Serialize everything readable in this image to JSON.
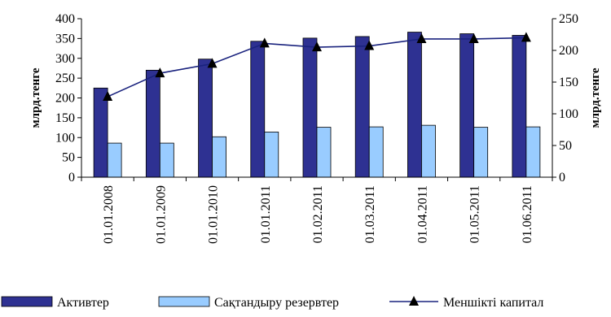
{
  "chart_data": {
    "type": "bar",
    "categories": [
      "01.01.2008",
      "01.01.2009",
      "01.01.2010",
      "01.01.2011",
      "01.02.2011",
      "01.03.2011",
      "01.04.2011",
      "01.05.2011",
      "01.06.2011"
    ],
    "series": [
      {
        "name": "Активтер",
        "type": "bar",
        "axis": "left",
        "color": "#2E3192",
        "values": [
          225,
          270,
          298,
          343,
          351,
          355,
          366,
          362,
          358
        ]
      },
      {
        "name": "Сақтандыру резервтер",
        "type": "bar",
        "axis": "left",
        "color": "#99CCFF",
        "values": [
          86,
          86,
          102,
          114,
          126,
          127,
          131,
          126,
          127
        ]
      },
      {
        "name": "Меншікті капитал",
        "type": "line",
        "axis": "right",
        "color": "#1A237E",
        "marker": "triangle",
        "values": [
          127,
          164,
          179,
          211,
          205,
          207,
          218,
          218,
          220
        ]
      }
    ],
    "y_left": {
      "label": "млрд.тенге",
      "ylim": [
        0,
        400
      ],
      "ticks": [
        0,
        50,
        100,
        150,
        200,
        250,
        300,
        350,
        400
      ]
    },
    "y_right": {
      "label": "млрд.тенге",
      "ylim": [
        0,
        250
      ],
      "ticks": [
        0,
        50,
        100,
        150,
        200,
        250
      ]
    },
    "grid": false,
    "legend": "bottom"
  }
}
